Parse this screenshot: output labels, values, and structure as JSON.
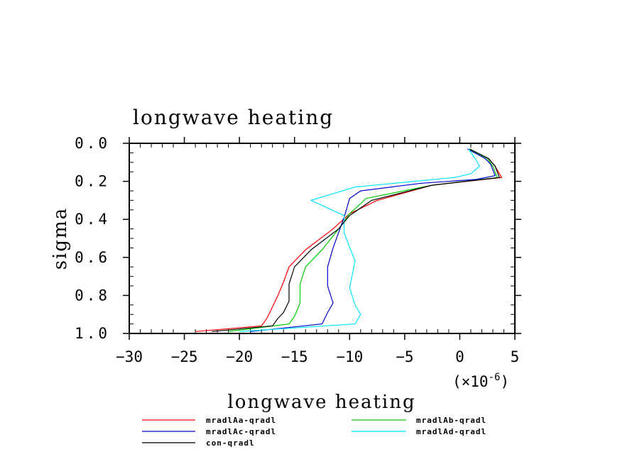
{
  "chart_data": {
    "type": "line",
    "title": "longwave heating",
    "xlabel": "longwave heating",
    "ylabel": "sigma",
    "x_multiplier_label": "(×10",
    "x_multiplier_exp": "-6",
    "x_multiplier_close": ")",
    "xlim": [
      -30,
      5
    ],
    "ylim": [
      1.0,
      0.0
    ],
    "x_ticks": [
      -30,
      -25,
      -20,
      -15,
      -10,
      -5,
      0,
      5
    ],
    "x_tick_labels": [
      "−30",
      "−25",
      "−20",
      "−15",
      "−10",
      "−5",
      "0",
      "5"
    ],
    "y_ticks": [
      0.0,
      0.2,
      0.4,
      0.6,
      0.8,
      1.0
    ],
    "y_tick_labels": [
      "0.0",
      "0.2",
      "0.4",
      "0.6",
      "0.8",
      "1.0"
    ],
    "grid": false,
    "legend_position": "bottom",
    "series": [
      {
        "name": "mradlAa-qradl",
        "color": "#ff0000",
        "x": [
          0.8,
          2.6,
          3.2,
          3.8,
          -2.5,
          -7.5,
          -10.0,
          -11.5,
          -14.0,
          -15.5,
          -16.0,
          -16.5,
          -17.0,
          -17.5,
          -18.0,
          -24.0
        ],
        "y": [
          0.03,
          0.08,
          0.12,
          0.18,
          0.22,
          0.3,
          0.37,
          0.45,
          0.56,
          0.65,
          0.73,
          0.8,
          0.86,
          0.92,
          0.96,
          0.99
        ]
      },
      {
        "name": "mradlAb-qradl",
        "color": "#00cc00",
        "x": [
          0.8,
          2.5,
          3.0,
          3.4,
          -2.5,
          -8.5,
          -10.0,
          -11.0,
          -12.5,
          -14.0,
          -14.5,
          -14.5,
          -15.0,
          -15.5,
          -21.0
        ],
        "y": [
          0.03,
          0.08,
          0.12,
          0.18,
          0.22,
          0.29,
          0.37,
          0.45,
          0.56,
          0.65,
          0.74,
          0.84,
          0.91,
          0.95,
          0.99
        ]
      },
      {
        "name": "mradlAc-qradl",
        "color": "#0000cc",
        "x": [
          0.7,
          2.3,
          2.8,
          3.2,
          1.5,
          -3.5,
          -9.0,
          -10.0,
          -10.5,
          -11.5,
          -12.0,
          -12.0,
          -11.5,
          -12.0,
          -12.5,
          -19.0
        ],
        "y": [
          0.03,
          0.08,
          0.11,
          0.17,
          0.19,
          0.21,
          0.25,
          0.29,
          0.39,
          0.55,
          0.65,
          0.75,
          0.84,
          0.89,
          0.95,
          0.99
        ]
      },
      {
        "name": "mradlAd-qradl",
        "color": "#00e5ff",
        "x": [
          0.8,
          1.5,
          1.8,
          1.0,
          -0.5,
          -9.5,
          -13.5,
          -10.5,
          -10.5,
          -9.5,
          -10.0,
          -9.5,
          -9.0,
          -9.5,
          -20.0
        ],
        "y": [
          0.03,
          0.09,
          0.12,
          0.16,
          0.18,
          0.23,
          0.3,
          0.38,
          0.47,
          0.62,
          0.76,
          0.85,
          0.9,
          0.95,
          0.99
        ]
      },
      {
        "name": "con-qradl",
        "color": "#000000",
        "x": [
          0.9,
          2.6,
          3.2,
          3.6,
          -2.5,
          -8.0,
          -10.0,
          -11.0,
          -13.5,
          -15.0,
          -15.5,
          -15.5,
          -16.0,
          -16.5,
          -17.0,
          -22.5
        ],
        "y": [
          0.03,
          0.08,
          0.12,
          0.18,
          0.22,
          0.3,
          0.38,
          0.45,
          0.56,
          0.65,
          0.74,
          0.83,
          0.89,
          0.92,
          0.96,
          0.99
        ]
      }
    ]
  }
}
